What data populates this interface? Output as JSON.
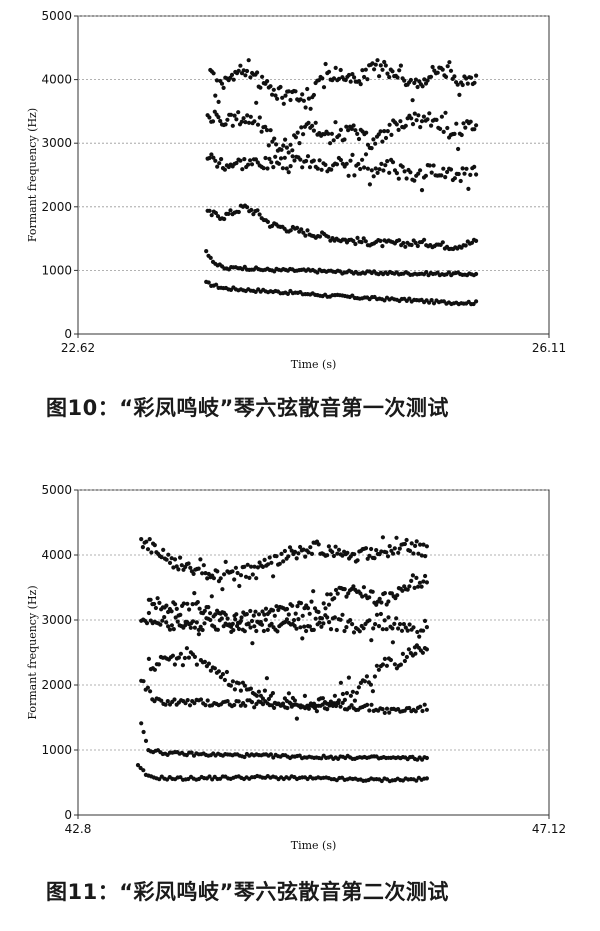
{
  "charts": [
    {
      "type": "scatter",
      "caption": "图10：“彩凤鸣岐”琴六弦散音第一次测试",
      "xlabel": "Time (s)",
      "ylabel": "Formant frequency (Hz)",
      "xlim": [
        22.62,
        26.11
      ],
      "ylim": [
        0,
        5000
      ],
      "yticks": [
        0,
        1000,
        2000,
        3000,
        4000,
        5000
      ],
      "xtick_labels": [
        "22.62",
        "26.11"
      ],
      "grid": "horizontal dashed",
      "data_x_range": [
        23.57,
        25.57
      ],
      "series": [
        {
          "points": [
            [
              23.57,
              800
            ],
            [
              23.7,
              720
            ],
            [
              23.9,
              690
            ],
            [
              24.2,
              650
            ],
            [
              24.5,
              600
            ],
            [
              24.8,
              560
            ],
            [
              25.1,
              530
            ],
            [
              25.3,
              500
            ],
            [
              25.57,
              490
            ]
          ]
        },
        {
          "points": [
            [
              23.57,
              1300
            ],
            [
              23.64,
              1100
            ],
            [
              23.72,
              1020
            ],
            [
              23.8,
              1050
            ],
            [
              24.0,
              1010
            ],
            [
              24.4,
              990
            ],
            [
              24.8,
              960
            ],
            [
              25.2,
              950
            ],
            [
              25.57,
              940
            ]
          ]
        },
        {
          "points": [
            [
              23.58,
              1900
            ],
            [
              23.7,
              1850
            ],
            [
              23.85,
              2000
            ],
            [
              23.95,
              1900
            ],
            [
              24.05,
              1720
            ],
            [
              24.3,
              1600
            ],
            [
              24.6,
              1480
            ],
            [
              24.9,
              1420
            ],
            [
              25.2,
              1430
            ],
            [
              25.4,
              1380
            ],
            [
              25.57,
              1450
            ]
          ]
        },
        {
          "points": [
            [
              23.58,
              2800
            ],
            [
              23.7,
              2680
            ],
            [
              23.9,
              2700
            ],
            [
              24.1,
              2650
            ],
            [
              24.3,
              2720
            ],
            [
              24.5,
              2580
            ],
            [
              24.65,
              2800
            ],
            [
              24.8,
              2550
            ],
            [
              24.95,
              2650
            ],
            [
              25.1,
              2500
            ],
            [
              25.3,
              2600
            ],
            [
              25.45,
              2480
            ],
            [
              25.57,
              2600
            ]
          ]
        },
        {
          "points": [
            [
              23.58,
              3450
            ],
            [
              23.7,
              3300
            ],
            [
              23.8,
              3400
            ],
            [
              23.95,
              3380
            ],
            [
              24.05,
              3000
            ],
            [
              24.2,
              2950
            ],
            [
              24.35,
              3300
            ],
            [
              24.5,
              3050
            ],
            [
              24.65,
              3200
            ],
            [
              24.8,
              3000
            ],
            [
              24.95,
              3250
            ],
            [
              25.1,
              3400
            ],
            [
              25.25,
              3300
            ],
            [
              25.4,
              3200
            ],
            [
              25.57,
              3300
            ]
          ]
        },
        {
          "points": [
            [
              23.6,
              4200
            ],
            [
              23.65,
              3900
            ],
            [
              23.85,
              4150
            ],
            [
              24.05,
              3850
            ],
            [
              24.2,
              3700
            ],
            [
              24.35,
              3800
            ],
            [
              24.5,
              4100
            ],
            [
              24.7,
              4000
            ],
            [
              24.85,
              4250
            ],
            [
              25.0,
              4050
            ],
            [
              25.15,
              3950
            ],
            [
              25.3,
              4200
            ],
            [
              25.45,
              4000
            ],
            [
              25.57,
              4050
            ]
          ]
        }
      ]
    },
    {
      "type": "scatter",
      "caption": "图11：“彩凤鸣岐”琴六弦散音第二次测试",
      "xlabel": "Time (s)",
      "ylabel": "Formant frequency (Hz)",
      "xlim": [
        42.8,
        47.12
      ],
      "ylim": [
        0,
        5000
      ],
      "yticks": [
        0,
        1000,
        2000,
        3000,
        4000,
        5000
      ],
      "xtick_labels": [
        "42.8",
        "47.12"
      ],
      "grid": "horizontal dashed",
      "data_x_range": [
        43.35,
        46.0
      ],
      "series": [
        {
          "points": [
            [
              43.35,
              750
            ],
            [
              43.45,
              580
            ],
            [
              43.7,
              560
            ],
            [
              44.0,
              570
            ],
            [
              44.5,
              580
            ],
            [
              45.0,
              560
            ],
            [
              45.5,
              540
            ],
            [
              46.0,
              550
            ]
          ]
        },
        {
          "points": [
            [
              43.38,
              1400
            ],
            [
              43.45,
              1000
            ],
            [
              43.6,
              950
            ],
            [
              44.0,
              930
            ],
            [
              44.5,
              910
            ],
            [
              45.0,
              890
            ],
            [
              45.5,
              880
            ],
            [
              46.0,
              870
            ]
          ]
        },
        {
          "points": [
            [
              43.38,
              2100
            ],
            [
              43.5,
              1750
            ],
            [
              43.8,
              1730
            ],
            [
              44.2,
              1720
            ],
            [
              44.6,
              1700
            ],
            [
              45.0,
              1690
            ],
            [
              45.4,
              1660
            ],
            [
              45.7,
              1600
            ],
            [
              46.0,
              1650
            ]
          ]
        },
        {
          "points": [
            [
              43.45,
              2300
            ],
            [
              43.9,
              2500
            ],
            [
              44.1,
              2200
            ],
            [
              44.3,
              1950
            ],
            [
              44.6,
              1800
            ],
            [
              45.0,
              1700
            ],
            [
              45.3,
              1800
            ],
            [
              45.6,
              2300
            ],
            [
              46.0,
              2600
            ]
          ]
        },
        {
          "points": [
            [
              43.38,
              3050
            ],
            [
              43.6,
              2950
            ],
            [
              44.0,
              2920
            ],
            [
              44.4,
              2900
            ],
            [
              44.8,
              2920
            ],
            [
              45.1,
              2950
            ],
            [
              45.3,
              2900
            ],
            [
              45.6,
              3000
            ],
            [
              45.9,
              2800
            ],
            [
              46.0,
              2900
            ]
          ]
        },
        {
          "points": [
            [
              43.45,
              3300
            ],
            [
              43.7,
              3150
            ],
            [
              43.9,
              3200
            ],
            [
              44.2,
              3000
            ],
            [
              44.6,
              3100
            ],
            [
              45.0,
              3200
            ],
            [
              45.3,
              3500
            ],
            [
              45.6,
              3300
            ],
            [
              45.85,
              3600
            ],
            [
              46.0,
              3500
            ]
          ]
        },
        {
          "points": [
            [
              43.38,
              4250
            ],
            [
              43.55,
              4000
            ],
            [
              43.8,
              3800
            ],
            [
              44.1,
              3700
            ],
            [
              44.4,
              3750
            ],
            [
              44.7,
              4000
            ],
            [
              45.0,
              4100
            ],
            [
              45.3,
              4000
            ],
            [
              45.6,
              4050
            ],
            [
              45.85,
              4150
            ],
            [
              46.0,
              4050
            ]
          ]
        }
      ]
    }
  ]
}
